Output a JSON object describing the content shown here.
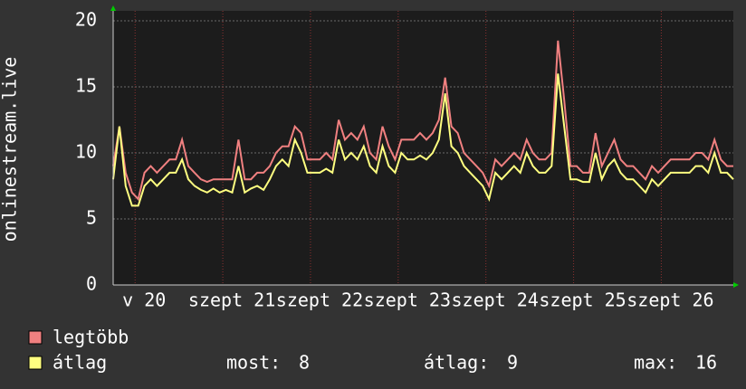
{
  "chart_data": {
    "type": "line",
    "ylabel": "onlinestream.live",
    "xlim": [
      0,
      99
    ],
    "xticks": [
      {
        "value": 3.5,
        "label": "v 20"
      },
      {
        "value": 17.5,
        "label": "szept 21"
      },
      {
        "value": 31.5,
        "label": "szept 22"
      },
      {
        "value": 45.5,
        "label": "szept 23"
      },
      {
        "value": 59.5,
        "label": "szept 24"
      },
      {
        "value": 73.5,
        "label": "szept 25"
      },
      {
        "value": 87.5,
        "label": "szept 26"
      }
    ],
    "ylim": [
      0,
      20
    ],
    "yticks": [
      0,
      5,
      10,
      15,
      20
    ],
    "grid": true,
    "series": [
      {
        "name": "legtöbb",
        "color": "#f08080",
        "values": [
          9,
          12,
          8.5,
          7,
          6.5,
          8.5,
          9,
          8.5,
          9,
          9.5,
          9.5,
          11,
          9,
          8.5,
          8,
          7.8,
          8,
          8,
          8,
          8,
          11,
          8,
          8,
          8.5,
          8.5,
          9,
          10,
          10.5,
          10.5,
          12,
          11.5,
          9.5,
          9.5,
          9.5,
          10,
          9.5,
          12.5,
          11,
          11.5,
          11,
          12,
          10,
          9.5,
          12,
          10.5,
          9.5,
          11,
          11,
          11,
          11.5,
          11,
          11.5,
          12.5,
          15.7,
          12,
          11.5,
          10,
          9.5,
          9,
          8.5,
          7.5,
          9.5,
          9,
          9.5,
          10,
          9.5,
          11,
          10,
          9.5,
          9.5,
          10,
          18.5,
          14,
          9,
          9,
          8.5,
          8.5,
          11.5,
          9,
          10,
          11,
          9.5,
          9,
          9,
          8.5,
          8,
          9,
          8.5,
          9,
          9.5,
          9.5,
          9.5,
          9.5,
          10,
          10,
          9.5,
          11,
          9.5,
          9,
          9
        ]
      },
      {
        "name": "átlag",
        "color": "#ffff80",
        "values": [
          8,
          12,
          7.5,
          6,
          6,
          7.5,
          8,
          7.5,
          8,
          8.5,
          8.5,
          9.5,
          8,
          7.5,
          7.2,
          7,
          7.3,
          7,
          7.2,
          7,
          9,
          7,
          7.3,
          7.5,
          7.2,
          8,
          9,
          9.5,
          9,
          11,
          10,
          8.5,
          8.5,
          8.5,
          8.8,
          8.5,
          11,
          9.5,
          10,
          9.5,
          10.5,
          9,
          8.5,
          10.5,
          9,
          8.5,
          10,
          9.5,
          9.5,
          9.8,
          9.5,
          10,
          11,
          14.5,
          10.5,
          10,
          9,
          8.5,
          8,
          7.5,
          6.5,
          8.5,
          8,
          8.5,
          9,
          8.5,
          10,
          9,
          8.5,
          8.5,
          9,
          16,
          12,
          8,
          8,
          7.8,
          7.8,
          10,
          8,
          9,
          9.5,
          8.5,
          8,
          8,
          7.5,
          7,
          8,
          7.5,
          8,
          8.5,
          8.5,
          8.5,
          8.5,
          9,
          9,
          8.5,
          10,
          8.5,
          8.5,
          8
        ]
      }
    ],
    "stats": [
      {
        "label": "most:",
        "value": 8
      },
      {
        "label": "átlag:",
        "value": 9
      },
      {
        "label": "max:",
        "value": 16
      }
    ]
  }
}
